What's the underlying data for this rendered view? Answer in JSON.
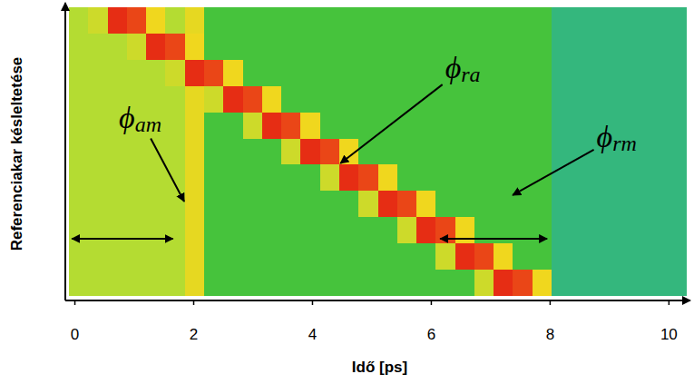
{
  "chart_data": {
    "type": "heatmap",
    "x_label": "Idő [ps]",
    "y_label": "Referenciakar késleltetése",
    "xlim": [
      -0.1,
      10.3
    ],
    "xticks": [
      0,
      2,
      4,
      6,
      8,
      10
    ],
    "ylim": [
      0,
      11
    ],
    "tick_labels": "x",
    "zlim": [
      0,
      1
    ],
    "x_edges": [
      -0.1,
      0.225,
      0.55,
      0.875,
      1.2,
      1.525,
      1.85,
      2.175,
      2.5,
      2.825,
      3.15,
      3.475,
      3.8,
      4.125,
      4.45,
      4.775,
      5.1,
      5.425,
      5.75,
      6.075,
      6.4,
      6.725,
      7.05,
      7.375,
      7.7,
      8.025,
      8.35,
      8.675,
      9,
      9.325,
      9.65,
      9.975,
      10.3
    ],
    "y_edges": [
      11,
      10,
      9,
      8,
      7,
      6,
      5,
      4,
      3,
      2,
      1,
      0
    ],
    "z": [
      [
        0.5,
        0.55,
        0.95,
        0.9,
        0.62,
        0.5,
        0.6,
        0.38,
        0.38,
        0.38,
        0.38,
        0.38,
        0.38,
        0.38,
        0.38,
        0.38,
        0.38,
        0.38,
        0.38,
        0.38,
        0.38,
        0.38,
        0.38,
        0.38,
        0.38,
        0.32,
        0.32,
        0.32,
        0.32,
        0.32,
        0.32,
        0.32
      ],
      [
        0.5,
        0.5,
        0.5,
        0.55,
        0.95,
        0.9,
        0.62,
        0.38,
        0.38,
        0.38,
        0.38,
        0.38,
        0.38,
        0.38,
        0.38,
        0.38,
        0.38,
        0.38,
        0.38,
        0.38,
        0.38,
        0.38,
        0.38,
        0.38,
        0.38,
        0.32,
        0.32,
        0.32,
        0.32,
        0.32,
        0.32,
        0.32
      ],
      [
        0.5,
        0.5,
        0.5,
        0.5,
        0.5,
        0.55,
        0.95,
        0.9,
        0.62,
        0.38,
        0.38,
        0.38,
        0.38,
        0.38,
        0.38,
        0.38,
        0.38,
        0.38,
        0.38,
        0.38,
        0.38,
        0.38,
        0.38,
        0.38,
        0.38,
        0.32,
        0.32,
        0.32,
        0.32,
        0.32,
        0.32,
        0.32
      ],
      [
        0.5,
        0.5,
        0.5,
        0.5,
        0.5,
        0.5,
        0.6,
        0.55,
        0.95,
        0.9,
        0.62,
        0.38,
        0.38,
        0.38,
        0.38,
        0.38,
        0.38,
        0.38,
        0.38,
        0.38,
        0.38,
        0.38,
        0.38,
        0.38,
        0.38,
        0.32,
        0.32,
        0.32,
        0.32,
        0.32,
        0.32,
        0.32
      ],
      [
        0.5,
        0.5,
        0.5,
        0.5,
        0.5,
        0.5,
        0.6,
        0.38,
        0.38,
        0.55,
        0.95,
        0.9,
        0.62,
        0.38,
        0.38,
        0.38,
        0.38,
        0.38,
        0.38,
        0.38,
        0.38,
        0.38,
        0.38,
        0.38,
        0.38,
        0.32,
        0.32,
        0.32,
        0.32,
        0.32,
        0.32,
        0.32
      ],
      [
        0.5,
        0.5,
        0.5,
        0.5,
        0.5,
        0.5,
        0.6,
        0.38,
        0.38,
        0.38,
        0.38,
        0.55,
        0.95,
        0.9,
        0.62,
        0.38,
        0.38,
        0.38,
        0.38,
        0.38,
        0.38,
        0.38,
        0.38,
        0.38,
        0.38,
        0.32,
        0.32,
        0.32,
        0.32,
        0.32,
        0.32,
        0.32
      ],
      [
        0.5,
        0.5,
        0.5,
        0.5,
        0.5,
        0.5,
        0.6,
        0.38,
        0.38,
        0.38,
        0.38,
        0.38,
        0.38,
        0.55,
        0.95,
        0.9,
        0.62,
        0.38,
        0.38,
        0.38,
        0.38,
        0.38,
        0.38,
        0.38,
        0.38,
        0.32,
        0.32,
        0.32,
        0.32,
        0.32,
        0.32,
        0.32
      ],
      [
        0.5,
        0.5,
        0.5,
        0.5,
        0.5,
        0.5,
        0.6,
        0.38,
        0.38,
        0.38,
        0.38,
        0.38,
        0.38,
        0.38,
        0.38,
        0.55,
        0.95,
        0.9,
        0.62,
        0.38,
        0.38,
        0.38,
        0.38,
        0.38,
        0.38,
        0.32,
        0.32,
        0.32,
        0.32,
        0.32,
        0.32,
        0.32
      ],
      [
        0.5,
        0.5,
        0.5,
        0.5,
        0.5,
        0.5,
        0.6,
        0.38,
        0.38,
        0.38,
        0.38,
        0.38,
        0.38,
        0.38,
        0.38,
        0.38,
        0.38,
        0.55,
        0.95,
        0.9,
        0.62,
        0.38,
        0.38,
        0.38,
        0.38,
        0.32,
        0.32,
        0.32,
        0.32,
        0.32,
        0.32,
        0.32
      ],
      [
        0.5,
        0.5,
        0.5,
        0.5,
        0.5,
        0.5,
        0.6,
        0.38,
        0.38,
        0.38,
        0.38,
        0.38,
        0.38,
        0.38,
        0.38,
        0.38,
        0.38,
        0.38,
        0.38,
        0.55,
        0.95,
        0.9,
        0.62,
        0.38,
        0.38,
        0.32,
        0.32,
        0.32,
        0.32,
        0.32,
        0.32,
        0.32
      ],
      [
        0.5,
        0.5,
        0.5,
        0.5,
        0.5,
        0.5,
        0.6,
        0.38,
        0.38,
        0.38,
        0.38,
        0.38,
        0.38,
        0.38,
        0.38,
        0.38,
        0.38,
        0.38,
        0.38,
        0.38,
        0.38,
        0.55,
        0.95,
        0.9,
        0.62,
        0.32,
        0.32,
        0.32,
        0.32,
        0.32,
        0.32,
        0.32
      ]
    ],
    "annotations": [
      {
        "text": "ϕ",
        "sub": "am",
        "x": 1.1,
        "y": 6.8,
        "target": [
          1.84,
          3.6
        ]
      },
      {
        "text": "ϕ",
        "sub": "ra",
        "x": 6.53,
        "y": 8.7,
        "target": [
          4.47,
          5.05
        ]
      },
      {
        "text": "ϕ",
        "sub": "rm",
        "x": 9.12,
        "y": 6.1,
        "target": [
          7.37,
          3.84
        ]
      }
    ],
    "ranges": [
      {
        "x": [
          -0.05,
          1.65
        ],
        "y": 2.18
      },
      {
        "x": [
          6.15,
          7.95
        ],
        "y": 2.18
      }
    ]
  }
}
